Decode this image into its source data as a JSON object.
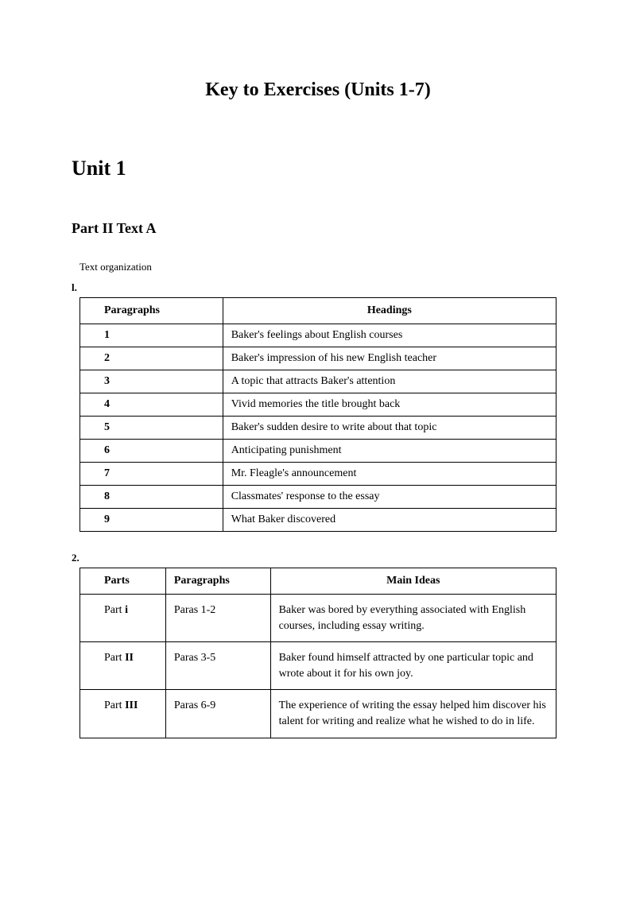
{
  "page_title": "Key to Exercises (Units 1-7)",
  "unit_title": "Unit 1",
  "part_title": "Part II Text A",
  "subsection_label": "Text organization",
  "table1": {
    "label": "l.",
    "headers": [
      "Paragraphs",
      "Headings"
    ],
    "rows": [
      {
        "col1": "1",
        "col2": "Baker's feelings about English courses"
      },
      {
        "col1": "2",
        "col2": "Baker's impression of his new English teacher"
      },
      {
        "col1": "3",
        "col2": "A topic that attracts Baker's attention"
      },
      {
        "col1": "4",
        "col2": "Vivid memories the title brought back"
      },
      {
        "col1": "5",
        "col2": "Baker's sudden desire to write about that topic"
      },
      {
        "col1": "6",
        "col2": "Anticipating punishment"
      },
      {
        "col1": "7",
        "col2": "Mr. Fleagle's announcement"
      },
      {
        "col1": "8",
        "col2": "Classmates' response to the essay"
      },
      {
        "col1": "9",
        "col2": "What Baker discovered"
      }
    ]
  },
  "table2": {
    "label": "2.",
    "headers": [
      "Parts",
      "Paragraphs",
      "Main Ideas"
    ],
    "rows": [
      {
        "col1": "Part i",
        "col2": "Paras 1-2",
        "col3": "Baker was bored by everything associated with English courses, including essay writing."
      },
      {
        "col1": "Part II",
        "col2": "Paras 3-5",
        "col3": "Baker found himself attracted by one particular topic and wrote about it for his own joy."
      },
      {
        "col1": "Part III",
        "col2": "Paras 6-9",
        "col3": "The experience of writing the essay helped him discover his talent for writing and realize what he wished to do in life."
      }
    ]
  }
}
